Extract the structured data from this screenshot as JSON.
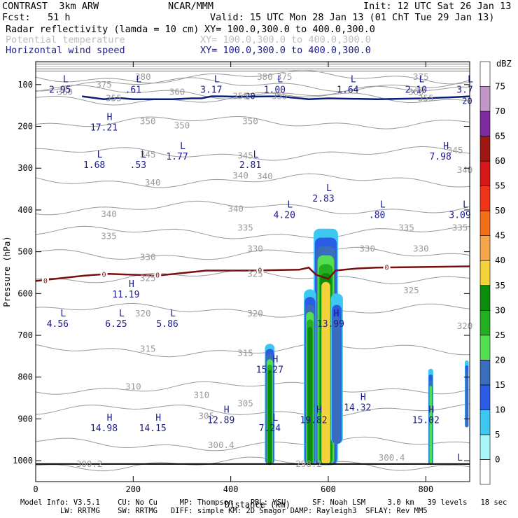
{
  "header": {
    "line1_left": "CONTRAST  3km ARW",
    "line1_mid": "NCAR/MMM",
    "line1_right": "Init: 12 UTC Sat 26 Jan 13",
    "line2_left": "Fcst:   51 h",
    "line2_right": "Valid: 15 UTC Mon 28 Jan 13 (01 ChT Tue 29 Jan 13)",
    "field1": "Radar reflectivity (lamda = 10 cm)",
    "field1_xy": "XY= 100.0,300.0 to 400.0,300.0",
    "field2": "Potential temperature",
    "field2_xy": "XY= 100.0,300.0 to 400.0,300.0",
    "field3": "Horizontal wind speed",
    "field3_xy": "XY= 100.0,300.0 to 400.0,300.0"
  },
  "footer": {
    "line1": "Model Info: V3.5.1    CU: No Cu     MP: Thompson    PBL: YSU      SF: Noah LSM     3.0 km   39 levels   18 sec",
    "line2": "         LW: RRTMG    SW: RRTMG   DIFF: simple KM: 2D Smagor DAMP: Rayleigh3  SFLAY: Rev MM5"
  },
  "colors": {
    "theta_contour": "#9a9a9a",
    "wind_label": "#1a1a8c",
    "freezing_line": "#7a0f0f",
    "jet_contour": "#0a1e78"
  },
  "chart_data": {
    "type": "heatmap",
    "title": "",
    "xlabel": "Distance (km)",
    "ylabel": "Pressure (hPa)",
    "xlim": [
      0,
      890
    ],
    "ylim": [
      1050,
      45
    ],
    "x_ticks": [
      0,
      200,
      400,
      600,
      800
    ],
    "y_ticks": [
      100,
      200,
      300,
      400,
      500,
      600,
      700,
      800,
      900,
      1000
    ],
    "colorbar": {
      "unit": "dBZ",
      "levels": [
        0,
        5,
        10,
        15,
        20,
        25,
        30,
        35,
        40,
        45,
        50,
        55,
        60,
        65,
        70,
        75
      ],
      "colors": [
        "#ffffff",
        "#a6f6fa",
        "#3dc8f2",
        "#2a5ce6",
        "#3a6dbc",
        "#52e052",
        "#22b022",
        "#0c8c0c",
        "#f4d23a",
        "#f6a64a",
        "#f47018",
        "#f03418",
        "#d61818",
        "#a01814",
        "#802aa0",
        "#c296c6",
        "#ffffff"
      ]
    },
    "theta_labels": [
      {
        "x": 140,
        "p": 100,
        "text": "375"
      },
      {
        "x": 220,
        "p": 82,
        "text": "380"
      },
      {
        "x": 470,
        "p": 82,
        "text": "380"
      },
      {
        "x": 510,
        "p": 82,
        "text": "375"
      },
      {
        "x": 790,
        "p": 82,
        "text": "375"
      },
      {
        "x": 60,
        "p": 118,
        "text": "360"
      },
      {
        "x": 290,
        "p": 118,
        "text": "360"
      },
      {
        "x": 780,
        "p": 118,
        "text": "360"
      },
      {
        "x": 160,
        "p": 133,
        "text": "355"
      },
      {
        "x": 420,
        "p": 128,
        "text": "355"
      },
      {
        "x": 500,
        "p": 128,
        "text": "355"
      },
      {
        "x": 800,
        "p": 133,
        "text": "355"
      },
      {
        "x": 230,
        "p": 188,
        "text": "350"
      },
      {
        "x": 300,
        "p": 198,
        "text": "350"
      },
      {
        "x": 440,
        "p": 188,
        "text": "350"
      },
      {
        "x": 230,
        "p": 268,
        "text": "345"
      },
      {
        "x": 430,
        "p": 270,
        "text": "345"
      },
      {
        "x": 860,
        "p": 258,
        "text": "345"
      },
      {
        "x": 240,
        "p": 335,
        "text": "340"
      },
      {
        "x": 420,
        "p": 318,
        "text": "340"
      },
      {
        "x": 470,
        "p": 320,
        "text": "340"
      },
      {
        "x": 880,
        "p": 305,
        "text": "340"
      },
      {
        "x": 150,
        "p": 410,
        "text": "340"
      },
      {
        "x": 410,
        "p": 398,
        "text": "340"
      },
      {
        "x": 150,
        "p": 463,
        "text": "335"
      },
      {
        "x": 430,
        "p": 443,
        "text": "335"
      },
      {
        "x": 760,
        "p": 443,
        "text": "335"
      },
      {
        "x": 870,
        "p": 443,
        "text": "335"
      },
      {
        "x": 230,
        "p": 513,
        "text": "330"
      },
      {
        "x": 450,
        "p": 493,
        "text": "330"
      },
      {
        "x": 680,
        "p": 493,
        "text": "330"
      },
      {
        "x": 790,
        "p": 493,
        "text": "330"
      },
      {
        "x": 230,
        "p": 563,
        "text": "325"
      },
      {
        "x": 450,
        "p": 553,
        "text": "325"
      },
      {
        "x": 770,
        "p": 593,
        "text": "325"
      },
      {
        "x": 220,
        "p": 648,
        "text": "320"
      },
      {
        "x": 450,
        "p": 648,
        "text": "320"
      },
      {
        "x": 880,
        "p": 678,
        "text": "320"
      },
      {
        "x": 230,
        "p": 733,
        "text": "315"
      },
      {
        "x": 430,
        "p": 743,
        "text": "315"
      },
      {
        "x": 200,
        "p": 823,
        "text": "310"
      },
      {
        "x": 340,
        "p": 843,
        "text": "310"
      },
      {
        "x": 430,
        "p": 863,
        "text": "305"
      },
      {
        "x": 350,
        "p": 893,
        "text": "305"
      },
      {
        "x": 380,
        "p": 963,
        "text": "300.4"
      },
      {
        "x": 730,
        "p": 993,
        "text": "300.4"
      },
      {
        "x": 110,
        "p": 1008,
        "text": "300.2"
      },
      {
        "x": 560,
        "p": 1008,
        "text": "298.2"
      }
    ],
    "wind_extrema": [
      {
        "type": "L",
        "x": 50,
        "p": 98,
        "value": "2.95"
      },
      {
        "type": "L",
        "x": 200,
        "p": 98,
        "value": ".61"
      },
      {
        "type": "L",
        "x": 360,
        "p": 98,
        "value": "3.17"
      },
      {
        "type": "L",
        "x": 490,
        "p": 98,
        "value": "1.00"
      },
      {
        "type": "L",
        "x": 640,
        "p": 98,
        "value": "1.64"
      },
      {
        "type": "L",
        "x": 780,
        "p": 98,
        "value": "2.10"
      },
      {
        "type": "L",
        "x": 880,
        "p": 98,
        "value": "3.7"
      },
      {
        "type": "H",
        "x": 140,
        "p": 188,
        "value": "17.21"
      },
      {
        "type": "L",
        "x": 120,
        "p": 278,
        "value": "1.68"
      },
      {
        "type": "L",
        "x": 210,
        "p": 278,
        "value": ".53"
      },
      {
        "type": "L",
        "x": 290,
        "p": 258,
        "value": "1.77"
      },
      {
        "type": "L",
        "x": 440,
        "p": 278,
        "value": "2.81"
      },
      {
        "type": "H",
        "x": 830,
        "p": 258,
        "value": "7.98"
      },
      {
        "type": "L",
        "x": 590,
        "p": 358,
        "value": "2.83"
      },
      {
        "type": "L",
        "x": 510,
        "p": 398,
        "value": "4.20"
      },
      {
        "type": "L",
        "x": 700,
        "p": 398,
        "value": ".80"
      },
      {
        "type": "L",
        "x": 870,
        "p": 398,
        "value": "3.09"
      },
      {
        "type": "H",
        "x": 185,
        "p": 588,
        "value": "11.19"
      },
      {
        "type": "L",
        "x": 45,
        "p": 658,
        "value": "4.56"
      },
      {
        "type": "L",
        "x": 165,
        "p": 658,
        "value": "6.25"
      },
      {
        "type": "L",
        "x": 270,
        "p": 658,
        "value": "5.86"
      },
      {
        "type": "H",
        "x": 605,
        "p": 658,
        "value": "13.99"
      },
      {
        "type": "H",
        "x": 480,
        "p": 768,
        "value": "15.27"
      },
      {
        "type": "H",
        "x": 660,
        "p": 858,
        "value": "14.32"
      },
      {
        "type": "H",
        "x": 380,
        "p": 888,
        "value": "12.89"
      },
      {
        "type": "H",
        "x": 570,
        "p": 888,
        "value": "19.82"
      },
      {
        "type": "H",
        "x": 800,
        "p": 888,
        "value": "15.02"
      },
      {
        "type": "H",
        "x": 140,
        "p": 908,
        "value": "14.98"
      },
      {
        "type": "H",
        "x": 240,
        "p": 908,
        "value": "14.15"
      },
      {
        "type": "L",
        "x": 480,
        "p": 908,
        "value": "7.24"
      },
      {
        "type": "L",
        "x": 870,
        "p": 993,
        "value": "L"
      }
    ],
    "freezing_label": "0",
    "jet_label": "20",
    "reflectivity_cells": [
      {
        "x": [
          470,
          490
        ],
        "p": [
          720,
          1010
        ],
        "max_dbz": 30
      },
      {
        "x": [
          570,
          620
        ],
        "p": [
          445,
          1010
        ],
        "max_dbz": 35
      },
      {
        "x": [
          550,
          575
        ],
        "p": [
          590,
          1010
        ],
        "max_dbz": 30
      },
      {
        "x": [
          605,
          630
        ],
        "p": [
          600,
          960
        ],
        "max_dbz": 15
      },
      {
        "x": [
          805,
          815
        ],
        "p": [
          780,
          1010
        ],
        "max_dbz": 20
      },
      {
        "x": [
          880,
          888
        ],
        "p": [
          760,
          920
        ],
        "max_dbz": 15
      }
    ]
  }
}
